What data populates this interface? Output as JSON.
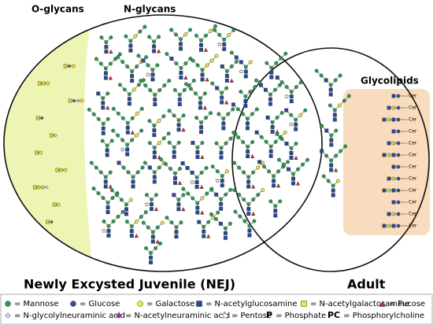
{
  "headers": {
    "o_glycans": "O-glycans",
    "n_glycans": "N-glycans",
    "glycolipids": "Glycolipids"
  },
  "groups": {
    "nej": "Newly Excysted Juvenile (NEJ)",
    "adult": "Adult"
  },
  "glycolipid_tag": "Cer",
  "legend": [
    {
      "symbol": "mannose",
      "label": "= Mannose"
    },
    {
      "symbol": "glucose",
      "label": "= Glucose"
    },
    {
      "symbol": "galactose",
      "label": "= Galactose"
    },
    {
      "symbol": "glcnac",
      "label": "= N-acetylglucosamine"
    },
    {
      "symbol": "galnac",
      "label": "= N-acetylgalactosamine"
    },
    {
      "symbol": "fucose",
      "label": "= Fucose"
    },
    {
      "symbol": "neugc",
      "label": "= N-glycolylneuraminic acid"
    },
    {
      "symbol": "neuac",
      "label": "= N-acetylneuraminic acid"
    },
    {
      "symbol": "pentose",
      "label": "= Pentose"
    },
    {
      "symbol_text": "P",
      "label": "= Phosphate"
    },
    {
      "symbol_text": "PC",
      "label": "= Phosphorylcholine"
    }
  ]
}
